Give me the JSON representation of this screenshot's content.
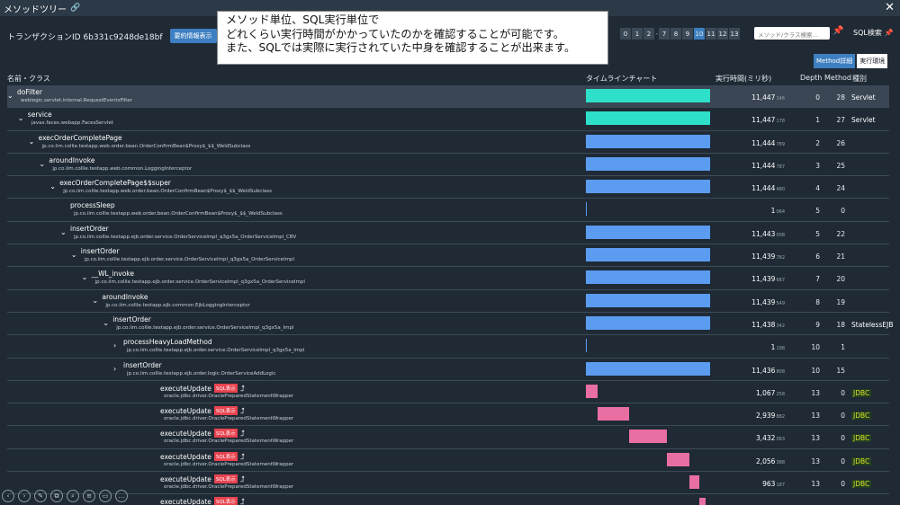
{
  "window": {
    "title": "メソッドツリー",
    "link_icon": "link-icon",
    "close_icon": "close-icon"
  },
  "transaction": {
    "label": "トランザクションID 6b331c9248de18bf",
    "summary_button": "要約情報表示"
  },
  "callout": {
    "lines": [
      "メソッド単位、SQL実行単位で",
      "どれくらい実行時間がかかっていたのかを確認することが可能です。",
      "また、SQLでは実際に実行されていた中身を確認することが出来ます。"
    ]
  },
  "depth_levels": [
    "0",
    "1",
    "2",
    "7",
    "8",
    "9",
    "10",
    "11",
    "12",
    "13"
  ],
  "depth_active": "10",
  "search": {
    "placeholder": "メソッド/クラス検索..."
  },
  "sql_search": {
    "label": "SQL検索"
  },
  "view_buttons": [
    {
      "label": "Method詳細",
      "active": true
    },
    {
      "label": "実行環境",
      "active": false
    }
  ],
  "columns": {
    "name": "名前・クラス",
    "timeline": "タイムラインチャート",
    "exec_time": "実行時間(ミリ秒)",
    "depth": "Depth",
    "method": "Method",
    "kind": "種別"
  },
  "colors": {
    "teal": "#2ee0c9",
    "blue": "#5b9cf0",
    "pink": "#e96ea2",
    "accent": "#3d7fc1"
  },
  "rows": [
    {
      "name": "doFilter",
      "cls": "weblogic.servlet.internal.RequestEventsFilter",
      "time": "11,447",
      "sub": "146",
      "depth": "0",
      "method": "28",
      "kind": "Servlet",
      "chev": "⌄",
      "indent": 0,
      "bar": {
        "color": "teal",
        "start": 0,
        "len": 1
      }
    },
    {
      "name": "service",
      "cls": "javax.faces.webapp.FacesServlet",
      "time": "11,447",
      "sub": "178",
      "depth": "1",
      "method": "27",
      "kind": "Servlet",
      "chev": "⌄",
      "indent": 1,
      "bar": {
        "color": "teal",
        "start": 0,
        "len": 1
      }
    },
    {
      "name": "execOrderCompletePage",
      "cls": "jp.co.iim.collie.testapp.web.order.bean.OrderConfirmBean$Proxy$_$$_WeldSubclass",
      "time": "11,444",
      "sub": "789",
      "depth": "2",
      "method": "26",
      "kind": "",
      "chev": "⌄",
      "indent": 2,
      "bar": {
        "color": "blue",
        "start": 0,
        "len": 1
      }
    },
    {
      "name": "aroundInvoke",
      "cls": "jp.co.iim.collie.testapp.web.common.LoggingInterceptor",
      "time": "11,444",
      "sub": "787",
      "depth": "3",
      "method": "25",
      "kind": "",
      "chev": "⌄",
      "indent": 3,
      "bar": {
        "color": "blue",
        "start": 0,
        "len": 1
      }
    },
    {
      "name": "execOrderCompletePage$$super",
      "cls": "jp.co.iim.collie.testapp.web.order.bean.OrderConfirmBean$Proxy$_$$_WeldSubclass",
      "time": "11,444",
      "sub": "480",
      "depth": "4",
      "method": "24",
      "kind": "",
      "chev": "⌄",
      "indent": 4,
      "bar": {
        "color": "blue",
        "start": 0,
        "len": 1
      }
    },
    {
      "name": "processSleep",
      "cls": "jp.co.iim.collie.testapp.web.order.bean.OrderConfirmBean$Proxy$_$$_WeldSubclass",
      "time": "1",
      "sub": "064",
      "depth": "5",
      "method": "0",
      "kind": "",
      "chev": "",
      "indent": 5,
      "bar": {
        "color": "blue",
        "start": 0,
        "len": 0.002
      }
    },
    {
      "name": "insertOrder",
      "cls": "jp.co.iim.collie.testapp.ejb.order.service.OrderServiceImpl_q3gx5a_OrderServiceImpl_CBV",
      "time": "11,443",
      "sub": "008",
      "depth": "5",
      "method": "22",
      "kind": "",
      "chev": "⌄",
      "indent": 5,
      "bar": {
        "color": "blue",
        "start": 0,
        "len": 1
      }
    },
    {
      "name": "insertOrder",
      "cls": "jp.co.iim.collie.testapp.ejb.order.service.OrderServiceImpl_q3gx5a_OrderServiceImpl",
      "time": "11,439",
      "sub": "782",
      "depth": "6",
      "method": "21",
      "kind": "",
      "chev": "⌄",
      "indent": 6,
      "bar": {
        "color": "blue",
        "start": 0,
        "len": 1
      }
    },
    {
      "name": "__WL_invoke",
      "cls": "jp.co.iim.collie.testapp.ejb.order.service.OrderServiceImpl_q3gx5a_OrderServiceImpl",
      "time": "11,439",
      "sub": "667",
      "depth": "7",
      "method": "20",
      "kind": "",
      "chev": "⌄",
      "indent": 7,
      "bar": {
        "color": "blue",
        "start": 0,
        "len": 1
      }
    },
    {
      "name": "aroundInvoke",
      "cls": "jp.co.iim.collie.testapp.ejb.common.EjbLoggingInterceptor",
      "time": "11,439",
      "sub": "549",
      "depth": "8",
      "method": "19",
      "kind": "",
      "chev": "⌄",
      "indent": 8,
      "bar": {
        "color": "blue",
        "start": 0,
        "len": 1
      }
    },
    {
      "name": "insertOrder",
      "cls": "jp.co.iim.collie.testapp.ejb.order.service.OrderServiceImpl_q3gx5a_Impl",
      "time": "11,438",
      "sub": "342",
      "depth": "9",
      "method": "18",
      "kind": "StatelessEJB",
      "chev": "⌄",
      "indent": 9,
      "bar": {
        "color": "blue",
        "start": 0,
        "len": 1
      }
    },
    {
      "name": "processHeavyLoadMethod",
      "cls": "jp.co.iim.collie.testapp.ejb.order.service.OrderServiceImpl_q3gx5a_Impl",
      "time": "1",
      "sub": "198",
      "depth": "10",
      "method": "1",
      "kind": "",
      "chev": "›",
      "indent": 10,
      "bar": {
        "color": "blue",
        "start": 0,
        "len": 0.002
      }
    },
    {
      "name": "insertOrder",
      "cls": "jp.co.iim.collie.testapp.ejb.order.logic.OrderServiceAddLogic",
      "time": "11,436",
      "sub": "808",
      "depth": "10",
      "method": "15",
      "kind": "",
      "chev": "›",
      "indent": 10,
      "bar": {
        "color": "blue",
        "start": 0,
        "len": 1
      }
    },
    {
      "name": "executeUpdate",
      "cls": "oracle.jdbc.driver.OraclePreparedStatementWrapper",
      "time": "1,067",
      "sub": "258",
      "depth": "13",
      "method": "0",
      "kind": "JDBC",
      "chev": "",
      "indent": 13,
      "sql": "SQL表示",
      "bar": {
        "color": "pink",
        "start": 0,
        "len": 0.093
      }
    },
    {
      "name": "executeUpdate",
      "cls": "oracle.jdbc.driver.OraclePreparedStatementWrapper",
      "time": "2,939",
      "sub": "882",
      "depth": "13",
      "method": "0",
      "kind": "JDBC",
      "chev": "",
      "indent": 13,
      "sql": "SQL表示",
      "bar": {
        "color": "pink",
        "start": 0.093,
        "len": 0.257
      }
    },
    {
      "name": "executeUpdate",
      "cls": "oracle.jdbc.driver.OraclePreparedStatementWrapper",
      "time": "3,432",
      "sub": "063",
      "depth": "13",
      "method": "0",
      "kind": "JDBC",
      "chev": "",
      "indent": 13,
      "sql": "SQL表示",
      "bar": {
        "color": "pink",
        "start": 0.35,
        "len": 0.3
      }
    },
    {
      "name": "executeUpdate",
      "cls": "oracle.jdbc.driver.OraclePreparedStatementWrapper",
      "time": "2,056",
      "sub": "388",
      "depth": "13",
      "method": "0",
      "kind": "JDBC",
      "chev": "",
      "indent": 13,
      "sql": "SQL表示",
      "bar": {
        "color": "pink",
        "start": 0.65,
        "len": 0.18
      }
    },
    {
      "name": "executeUpdate",
      "cls": "oracle.jdbc.driver.OraclePreparedStatementWrapper",
      "time": "963",
      "sub": "187",
      "depth": "13",
      "method": "0",
      "kind": "JDBC",
      "chev": "",
      "indent": 13,
      "sql": "SQL表示",
      "bar": {
        "color": "pink",
        "start": 0.83,
        "len": 0.084
      }
    },
    {
      "name": "executeUpdate",
      "cls": "",
      "time": "",
      "sub": "",
      "depth": "",
      "method": "",
      "kind": "",
      "chev": "",
      "indent": 13,
      "sql": "SQL表示",
      "bar": {
        "color": "pink",
        "start": 0.914,
        "len": 0.05
      }
    }
  ],
  "toolbar_icons": [
    "prev-icon",
    "next-icon",
    "edit-icon",
    "copy-icon",
    "zoom-icon",
    "list-icon",
    "screen-icon",
    "more-icon"
  ]
}
